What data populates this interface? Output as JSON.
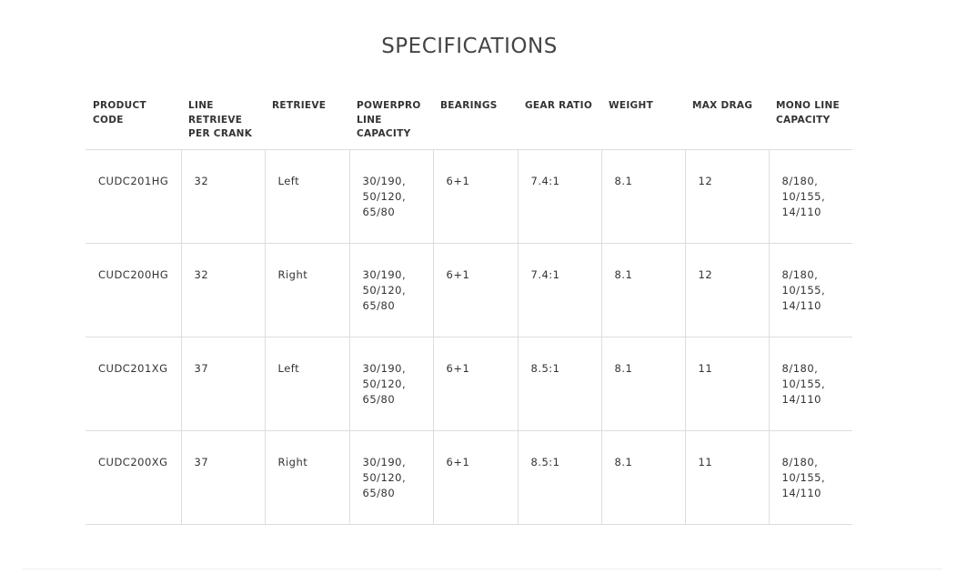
{
  "title": "SPECIFICATIONS",
  "headers": [
    "PRODUCT CODE",
    "LINE RETRIEVE PER CRANK",
    "RETRIEVE",
    "POWERPRO LINE CAPACITY",
    "BEARINGS",
    "GEAR RATIO",
    "WEIGHT",
    "MAX DRAG",
    "MONO LINE CAPACITY"
  ],
  "rows": [
    [
      "CUDC201HG",
      "32",
      "Left",
      "30/190, 50/120, 65/80",
      "6+1",
      "7.4:1",
      "8.1",
      "12",
      "8/180, 10/155, 14/110"
    ],
    [
      "CUDC200HG",
      "32",
      "Right",
      "30/190, 50/120, 65/80",
      "6+1",
      "7.4:1",
      "8.1",
      "12",
      "8/180, 10/155, 14/110"
    ],
    [
      "CUDC201XG",
      "37",
      "Left",
      "30/190, 50/120, 65/80",
      "6+1",
      "8.5:1",
      "8.1",
      "11",
      "8/180, 10/155, 14/110"
    ],
    [
      "CUDC200XG",
      "37",
      "Right",
      "30/190, 50/120, 65/80",
      "6+1",
      "8.5:1",
      "8.1",
      "11",
      "8/180, 10/155, 14/110"
    ]
  ]
}
